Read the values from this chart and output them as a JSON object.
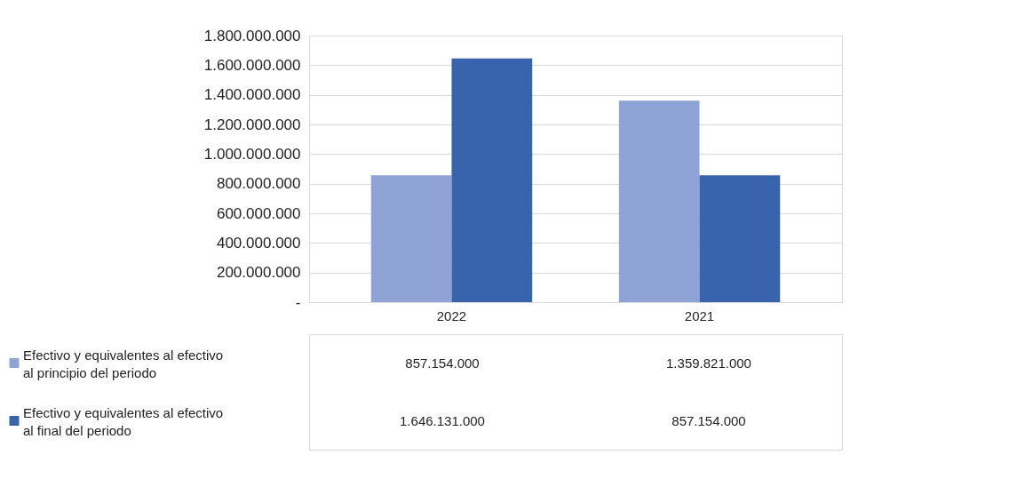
{
  "chart_data": {
    "type": "bar",
    "categories": [
      "2022",
      "2021"
    ],
    "series": [
      {
        "name": "Efectivo y equivalentes al efectivo al principio del periodo",
        "color": "#8fa3d6",
        "values": [
          857154000,
          1359821000
        ],
        "value_labels": [
          "857.154.000",
          "1.359.821.000"
        ]
      },
      {
        "name": "Efectivo y equivalentes al efectivo al final del periodo",
        "color": "#3a63ae",
        "values": [
          1646131000,
          857154000
        ],
        "value_labels": [
          "1.646.131.000",
          "857.154.000"
        ]
      }
    ],
    "ylim": [
      0,
      1800000000
    ],
    "yticks": [
      {
        "value": 0,
        "label": "-"
      },
      {
        "value": 200000000,
        "label": "200.000.000"
      },
      {
        "value": 400000000,
        "label": "400.000.000"
      },
      {
        "value": 600000000,
        "label": "600.000.000"
      },
      {
        "value": 800000000,
        "label": "800.000.000"
      },
      {
        "value": 1000000000,
        "label": "1.000.000.000"
      },
      {
        "value": 1200000000,
        "label": "1.200.000.000"
      },
      {
        "value": 1400000000,
        "label": "1.400.000.000"
      },
      {
        "value": 1600000000,
        "label": "1.600.000.000"
      },
      {
        "value": 1800000000,
        "label": "1.800.000.000"
      }
    ],
    "grid": true,
    "legend": "bottom"
  }
}
